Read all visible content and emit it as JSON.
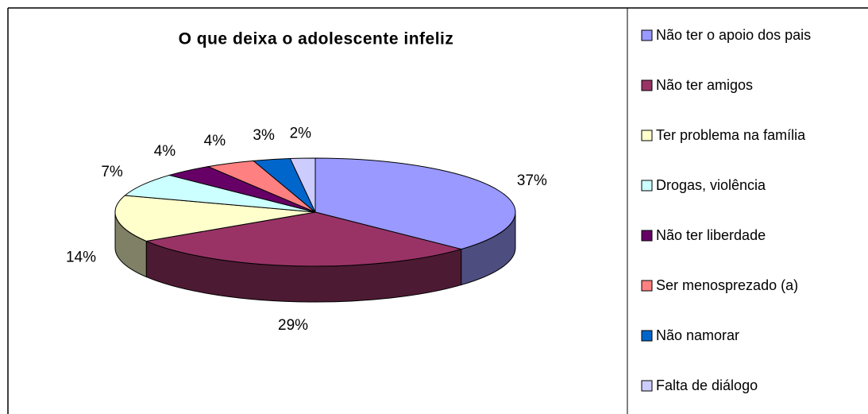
{
  "chart_data": {
    "type": "pie3d",
    "title": "O que deixa o adolescente infeliz",
    "categories": [
      "Não ter o apoio dos pais",
      "Não ter amigos",
      "Ter problema na família",
      "Drogas, violência",
      "Não ter liberdade",
      "Ser menosprezado (a)",
      "Não namorar",
      "Falta de diálogo"
    ],
    "values": [
      37,
      29,
      14,
      7,
      4,
      4,
      3,
      2
    ],
    "value_labels": [
      "37%",
      "29%",
      "14%",
      "7%",
      "4%",
      "4%",
      "3%",
      "2%"
    ],
    "colors": [
      "#9999FF",
      "#993366",
      "#FFFFCC",
      "#CCFFFF",
      "#660066",
      "#FF8080",
      "#0066CC",
      "#CCCCFF"
    ],
    "legend": "right"
  }
}
